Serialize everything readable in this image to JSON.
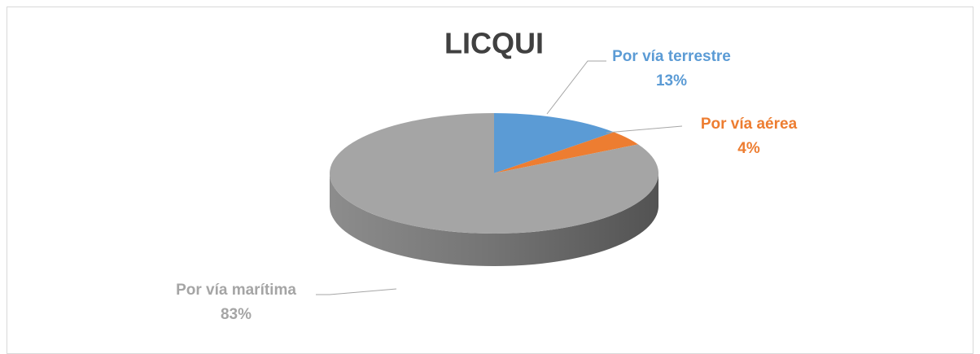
{
  "chart_data": {
    "type": "pie",
    "title": "LICQUI",
    "categories": [
      "Por vía terrestre",
      "Por vía aérea",
      "Por vía marítima"
    ],
    "values": [
      13,
      4,
      83
    ],
    "value_labels": [
      "13%",
      "4%",
      "83%"
    ],
    "colors": [
      "#5b9bd5",
      "#ed7d31",
      "#a5a5a5"
    ]
  }
}
